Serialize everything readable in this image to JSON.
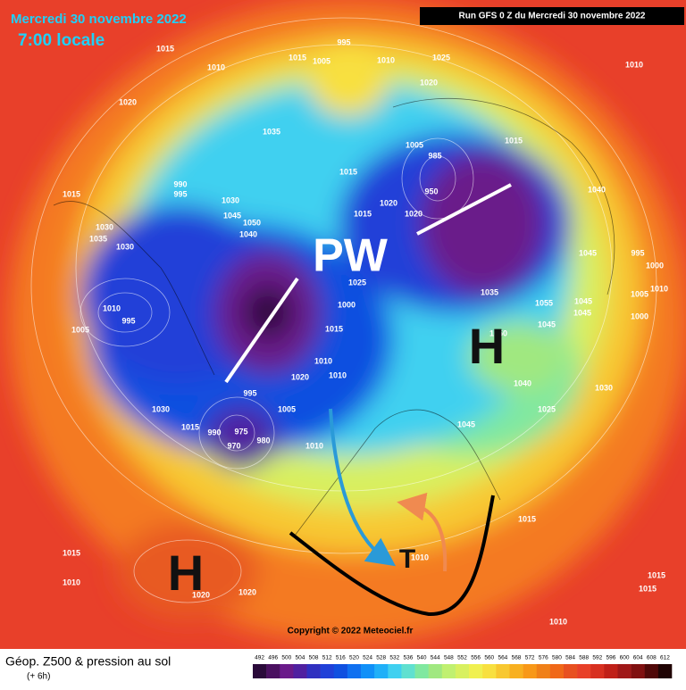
{
  "header": {
    "date": "Mercredi 30 novembre 2022",
    "time": "7:00 locale",
    "run": "Run GFS 0 Z du Mercredi 30 novembre 2022"
  },
  "annotations": {
    "pw": "PW",
    "high_east": "H",
    "high_west": "H",
    "trough": "T"
  },
  "isobar_labels": [
    "1015",
    "1010",
    "995",
    "1005",
    "1010",
    "1015",
    "1025",
    "1020",
    "1010",
    "1020",
    "1035",
    "1015",
    "1005",
    "1015",
    "990",
    "995",
    "1030",
    "1045",
    "1050",
    "1040",
    "1015",
    "1030",
    "1035",
    "1030",
    "1040",
    "995",
    "1000",
    "1045",
    "1010",
    "1005",
    "1000",
    "1045",
    "1045",
    "1055",
    "1045",
    "1050",
    "1035",
    "1040",
    "1030",
    "1025",
    "1045",
    "1010",
    "995",
    "1005",
    "1000",
    "1025",
    "1015",
    "1010",
    "1010",
    "1020",
    "995",
    "1005",
    "1010",
    "1030",
    "1015",
    "990",
    "975",
    "980",
    "970",
    "1015",
    "1015",
    "1010",
    "1020",
    "1020",
    "1010",
    "1015",
    "1015",
    "1010",
    "1020",
    "1020",
    "1015",
    "950",
    "985"
  ],
  "copyright": "Copyright © 2022 Meteociel.fr",
  "footer": {
    "title": "Géop. Z500 & pression au sol",
    "lead": "(+ 6h)"
  },
  "legend": {
    "values": [
      492,
      496,
      500,
      504,
      508,
      512,
      516,
      520,
      524,
      528,
      532,
      536,
      540,
      544,
      548,
      552,
      556,
      560,
      564,
      568,
      572,
      576,
      580,
      584,
      588,
      592,
      596,
      600,
      604,
      608,
      612
    ],
    "colors": [
      "#2a0a3a",
      "#4a1060",
      "#6a1a8a",
      "#5020a0",
      "#3030c0",
      "#2040d8",
      "#1050e0",
      "#1070f0",
      "#1090f8",
      "#20b0f8",
      "#40d0f0",
      "#60e0d0",
      "#80e8a0",
      "#a0e880",
      "#c0f070",
      "#d8f060",
      "#f0f050",
      "#f8e040",
      "#f8c830",
      "#f8b020",
      "#f89818",
      "#f08018",
      "#f06818",
      "#e85020",
      "#e84028",
      "#d83020",
      "#c02018",
      "#a01818",
      "#801010",
      "#500808",
      "#200404"
    ]
  }
}
